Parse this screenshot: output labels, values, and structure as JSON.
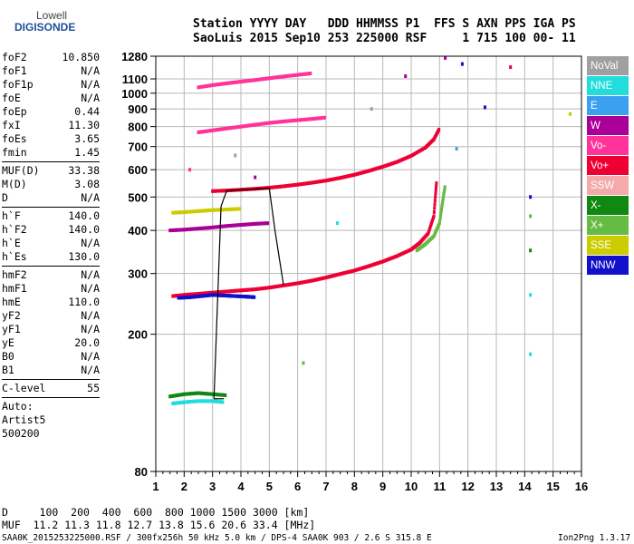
{
  "logo": {
    "line1": "Lowell",
    "line2": "DIGISONDE"
  },
  "header": {
    "line1": "Station YYYY DAY   DDD HHMMSS P1  FFS S AXN PPS IGA PS",
    "line2": "SaoLuis 2015 Sep10 253 225000 RSF     1 715 100 00- 11"
  },
  "params_top": [
    {
      "label": "foF2",
      "value": "10.850"
    },
    {
      "label": "foF1",
      "value": "N/A"
    },
    {
      "label": "foF1p",
      "value": "N/A"
    },
    {
      "label": "foE",
      "value": "N/A"
    },
    {
      "label": "foEp",
      "value": "0.44"
    },
    {
      "label": "fxI",
      "value": "11.30"
    },
    {
      "label": "foEs",
      "value": "3.65"
    },
    {
      "label": "fmin",
      "value": "1.45"
    }
  ],
  "params_muf": [
    {
      "label": "MUF(D)",
      "value": "33.38"
    },
    {
      "label": "M(D)",
      "value": "3.08"
    },
    {
      "label": "D",
      "value": "N/A"
    }
  ],
  "params_h": [
    {
      "label": "h`F",
      "value": "140.0"
    },
    {
      "label": "h`F2",
      "value": "140.0"
    },
    {
      "label": "h`E",
      "value": "N/A"
    },
    {
      "label": "h`Es",
      "value": "130.0"
    }
  ],
  "params_hm": [
    {
      "label": "hmF2",
      "value": "N/A"
    },
    {
      "label": "hmF1",
      "value": "N/A"
    },
    {
      "label": "hmE",
      "value": "110.0"
    },
    {
      "label": "yF2",
      "value": "N/A"
    },
    {
      "label": "yF1",
      "value": "N/A"
    },
    {
      "label": "yE",
      "value": "20.0"
    },
    {
      "label": "B0",
      "value": "N/A"
    },
    {
      "label": "B1",
      "value": "N/A"
    }
  ],
  "params_c": [
    {
      "label": "C-level",
      "value": "55"
    }
  ],
  "auto_lines": [
    "Auto:",
    "Artist5",
    "500200"
  ],
  "legend": [
    {
      "label": "NoVal",
      "color": "#a0a0a0"
    },
    {
      "label": "NNE",
      "color": "#22dddd"
    },
    {
      "label": "E",
      "color": "#3aa0f0"
    },
    {
      "label": "W",
      "color": "#aa0099"
    },
    {
      "label": "Vo-",
      "color": "#ff3399"
    },
    {
      "label": "Vo+",
      "color": "#ee0033"
    },
    {
      "label": "SSW",
      "color": "#f4aaaa"
    },
    {
      "label": "X-",
      "color": "#118811"
    },
    {
      "label": "X+",
      "color": "#66bb44"
    },
    {
      "label": "SSE",
      "color": "#cccc00"
    },
    {
      "label": "NNW",
      "color": "#1111cc"
    }
  ],
  "bottom": {
    "d_line": "D     100  200  400  600  800 1000 1500 3000 [km]",
    "muf_line": "MUF  11.2 11.3 11.8 12.7 13.8 15.6 20.6 33.4 [MHz]"
  },
  "footer": {
    "left": "SAA0K_2015253225000.RSF / 300fx256h 50 kHz 5.0 km / DPS-4 SAA0K 903 / 2.6 S 315.8 E",
    "right": "Ion2Png 1.3.17"
  },
  "chart_data": {
    "type": "scatter",
    "x_ticks": [
      "1",
      "2",
      "3",
      "4",
      "5",
      "6",
      "7",
      "8",
      "9",
      "10",
      "11",
      "12",
      "13",
      "14",
      "15",
      "16"
    ],
    "y_ticks": [
      "80",
      "200",
      "300",
      "400",
      "500",
      "600",
      "700",
      "800",
      "900",
      "1000",
      "1100",
      "1280"
    ],
    "xlim": [
      1,
      16
    ],
    "ylim": [
      80,
      1280
    ],
    "log_y": true,
    "grid": true,
    "series": [
      {
        "name": "Vo+",
        "color": "#ee0033",
        "x": [
          1.6,
          2.0,
          2.5,
          3.0,
          3.5,
          4.0,
          4.5,
          5.0,
          5.5,
          6.0,
          6.5,
          7.0,
          7.5,
          8.0,
          8.5,
          9.0,
          9.5,
          10.0,
          10.3,
          10.6,
          10.8,
          10.9
        ],
        "y": [
          258,
          260,
          262,
          264,
          266,
          268,
          270,
          273,
          277,
          281,
          286,
          292,
          299,
          306,
          315,
          325,
          337,
          352,
          368,
          392,
          440,
          560
        ]
      },
      {
        "name": "Vo+",
        "color": "#ee0033",
        "x": [
          3.0,
          3.5,
          4.0,
          4.5,
          5.0,
          5.5,
          6.0,
          6.5,
          7.0,
          7.5,
          8.0,
          8.5,
          9.0,
          9.5,
          10.0,
          10.5,
          10.8,
          11.0
        ],
        "y": [
          520,
          522,
          525,
          528,
          532,
          537,
          543,
          550,
          558,
          568,
          580,
          595,
          612,
          632,
          658,
          695,
          735,
          790
        ]
      },
      {
        "name": "X+",
        "color": "#66bb44",
        "x": [
          10.2,
          10.5,
          10.8,
          11.0,
          11.1,
          11.2
        ],
        "y": [
          350,
          365,
          385,
          420,
          480,
          540
        ]
      },
      {
        "name": "Vo-",
        "color": "#ff3399",
        "x": [
          2.5,
          3.0,
          3.5,
          4.0,
          4.5,
          5.0,
          5.5,
          6.0,
          6.5,
          7.0
        ],
        "y": [
          770,
          780,
          790,
          800,
          810,
          820,
          828,
          835,
          842,
          850
        ]
      },
      {
        "name": "Vo-",
        "color": "#ff3399",
        "x": [
          2.5,
          3.0,
          3.5,
          4.0,
          4.5,
          5.0,
          5.5,
          6.0,
          6.5
        ],
        "y": [
          1040,
          1055,
          1068,
          1080,
          1092,
          1105,
          1118,
          1130,
          1142
        ]
      },
      {
        "name": "NNW",
        "color": "#1111cc",
        "x": [
          1.8,
          2.2,
          2.6,
          3.0,
          3.4,
          3.8,
          4.2,
          4.5
        ],
        "y": [
          255,
          256,
          258,
          260,
          259,
          258,
          257,
          256
        ]
      },
      {
        "name": "W",
        "color": "#aa0099",
        "x": [
          1.5,
          2.0,
          2.5,
          3.0,
          3.5,
          4.0,
          4.5,
          5.0
        ],
        "y": [
          400,
          402,
          405,
          408,
          412,
          415,
          418,
          420
        ]
      },
      {
        "name": "SSE",
        "color": "#cccc00",
        "x": [
          1.6,
          2.0,
          2.5,
          3.0,
          3.5,
          4.0
        ],
        "y": [
          450,
          452,
          455,
          458,
          460,
          462
        ]
      },
      {
        "name": "X-",
        "color": "#118811",
        "x": [
          1.5,
          2.0,
          2.5,
          3.0,
          3.5
        ],
        "y": [
          132,
          134,
          135,
          134,
          133
        ]
      },
      {
        "name": "NNE",
        "color": "#22dddd",
        "x": [
          1.6,
          2.0,
          2.5,
          3.0,
          3.4
        ],
        "y": [
          126,
          127,
          128,
          128,
          127
        ]
      }
    ],
    "trace_lines": [
      {
        "x": [
          3.05,
          3.3,
          3.5
        ],
        "y": [
          130,
          470,
          522
        ]
      },
      {
        "x": [
          5.0,
          5.2,
          5.5
        ],
        "y": [
          530,
          400,
          278
        ]
      },
      {
        "x": [
          3.5,
          4.3,
          5.0
        ],
        "y": [
          522,
          526,
          530
        ]
      },
      {
        "x": [
          3.05,
          3.4
        ],
        "y": [
          130,
          130
        ]
      }
    ],
    "scatter_points": [
      {
        "x": 12.6,
        "y": 910,
        "color": "#1111cc"
      },
      {
        "x": 11.8,
        "y": 1215,
        "color": "#1111cc"
      },
      {
        "x": 11.2,
        "y": 1265,
        "color": "#aa0099"
      },
      {
        "x": 9.8,
        "y": 1120,
        "color": "#aa0099"
      },
      {
        "x": 13.5,
        "y": 1190,
        "color": "#ee0033"
      },
      {
        "x": 14.2,
        "y": 500,
        "color": "#1111cc"
      },
      {
        "x": 14.2,
        "y": 440,
        "color": "#66bb44"
      },
      {
        "x": 14.2,
        "y": 350,
        "color": "#118811"
      },
      {
        "x": 14.2,
        "y": 260,
        "color": "#22dddd"
      },
      {
        "x": 14.2,
        "y": 175,
        "color": "#22dddd"
      },
      {
        "x": 15.6,
        "y": 870,
        "color": "#cccc00"
      },
      {
        "x": 11.6,
        "y": 690,
        "color": "#3aa0f0"
      },
      {
        "x": 6.2,
        "y": 165,
        "color": "#66bb44"
      },
      {
        "x": 7.4,
        "y": 420,
        "color": "#22dddd"
      },
      {
        "x": 8.6,
        "y": 900,
        "color": "#a0a0a0"
      },
      {
        "x": 3.8,
        "y": 660,
        "color": "#a0a0a0"
      },
      {
        "x": 4.5,
        "y": 570,
        "color": "#aa0099"
      },
      {
        "x": 2.2,
        "y": 600,
        "color": "#ff3399"
      }
    ]
  }
}
